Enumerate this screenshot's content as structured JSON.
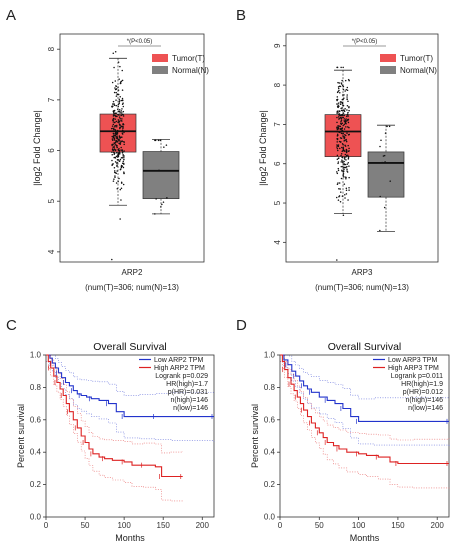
{
  "panels": {
    "A": "A",
    "B": "B",
    "C": "C",
    "D": "D"
  },
  "chart_data": [
    {
      "type": "box",
      "panel": "A",
      "ylabel": "|log2 Fold Change|",
      "ylim": [
        3.8,
        8.3
      ],
      "yticks": [
        4,
        5,
        6,
        7,
        8
      ],
      "xlabel": "ARP2",
      "sublabel": "(num(T)=306; num(N)=13)",
      "significance": "*(P<0.05)",
      "legend": [
        {
          "name": "Tumor(T)",
          "color": "#ee5253"
        },
        {
          "name": "Normal(N)",
          "color": "#808080"
        }
      ],
      "series": [
        {
          "name": "Tumor(T)",
          "color": "#ee5253",
          "q1": 5.97,
          "median": 6.38,
          "q3": 6.72,
          "whisker_low": 4.92,
          "whisker_high": 7.82,
          "n": 306,
          "point_min": 3.85,
          "point_max": 7.95
        },
        {
          "name": "Normal(N)",
          "color": "#808080",
          "q1": 5.05,
          "median": 5.6,
          "q3": 5.98,
          "whisker_low": 4.75,
          "whisker_high": 6.22,
          "n": 13,
          "point_min": 4.75,
          "point_max": 6.2
        }
      ]
    },
    {
      "type": "box",
      "panel": "B",
      "ylabel": "|log2 Fold Change|",
      "ylim": [
        3.5,
        9.3
      ],
      "yticks": [
        4,
        5,
        6,
        7,
        8,
        9
      ],
      "xlabel": "ARP3",
      "sublabel": "(num(T)=306; num(N)=13)",
      "significance": "*(P<0.05)",
      "legend": [
        {
          "name": "Tumor(T)",
          "color": "#ee5253"
        },
        {
          "name": "Normal(N)",
          "color": "#808080"
        }
      ],
      "series": [
        {
          "name": "Tumor(T)",
          "color": "#ee5253",
          "q1": 6.18,
          "median": 6.82,
          "q3": 7.25,
          "whisker_low": 4.73,
          "whisker_high": 8.38,
          "n": 306,
          "point_min": 3.55,
          "point_max": 8.45
        },
        {
          "name": "Normal(N)",
          "color": "#808080",
          "q1": 5.15,
          "median": 6.02,
          "q3": 6.3,
          "whisker_low": 4.28,
          "whisker_high": 6.98,
          "n": 13,
          "point_min": 4.3,
          "point_max": 6.95
        }
      ]
    },
    {
      "type": "line",
      "subtype": "kaplan-meier",
      "panel": "C",
      "title": "Overall Survival",
      "xlabel": "Months",
      "ylabel": "Percent survival",
      "xlim": [
        0,
        215
      ],
      "ylim": [
        0,
        1.0
      ],
      "xticks": [
        0,
        50,
        100,
        150,
        200
      ],
      "yticks": [
        0.0,
        0.2,
        0.4,
        0.6,
        0.8,
        1.0
      ],
      "legend": [
        {
          "name": "Low  ARP2 TPM",
          "color": "#2233cc"
        },
        {
          "name": "High ARP2 TPM",
          "color": "#dd2222"
        }
      ],
      "stats": [
        "Logrank p=0.029",
        "HR(high)=1.7",
        "p(HR)=0.031",
        "n(high)=146",
        "n(low)=146"
      ],
      "series": [
        {
          "name": "Low  ARP2 TPM",
          "color": "#2233cc",
          "x": [
            0,
            5,
            8,
            12,
            16,
            20,
            25,
            30,
            35,
            40,
            45,
            52,
            58,
            68,
            80,
            90,
            100,
            120,
            140,
            160,
            215
          ],
          "y": [
            1.0,
            0.98,
            0.95,
            0.92,
            0.89,
            0.86,
            0.83,
            0.81,
            0.78,
            0.76,
            0.75,
            0.74,
            0.73,
            0.72,
            0.7,
            0.65,
            0.62,
            0.62,
            0.62,
            0.62,
            0.62
          ]
        },
        {
          "name": "High ARP2 TPM",
          "color": "#dd2222",
          "x": [
            0,
            3,
            6,
            10,
            14,
            18,
            22,
            26,
            30,
            35,
            40,
            45,
            50,
            55,
            60,
            68,
            75,
            85,
            100,
            110,
            125,
            140,
            148,
            160,
            175
          ],
          "y": [
            1.0,
            0.96,
            0.92,
            0.87,
            0.83,
            0.79,
            0.75,
            0.7,
            0.65,
            0.6,
            0.55,
            0.5,
            0.46,
            0.42,
            0.39,
            0.37,
            0.36,
            0.35,
            0.34,
            0.32,
            0.32,
            0.31,
            0.25,
            0.25,
            0.25
          ]
        }
      ]
    },
    {
      "type": "line",
      "subtype": "kaplan-meier",
      "panel": "D",
      "title": "Overall Survival",
      "xlabel": "Months",
      "ylabel": "Percent survival",
      "xlim": [
        0,
        215
      ],
      "ylim": [
        0,
        1.0
      ],
      "xticks": [
        0,
        50,
        100,
        150,
        200
      ],
      "yticks": [
        0.0,
        0.2,
        0.4,
        0.6,
        0.8,
        1.0
      ],
      "legend": [
        {
          "name": "Low  ARP3 TPM",
          "color": "#2233cc"
        },
        {
          "name": "High ARP3 TPM",
          "color": "#dd2222"
        }
      ],
      "stats": [
        "Logrank p=0.011",
        "HR(high)=1.9",
        "p(HR)=0.012",
        "n(high)=146",
        "n(low)=146"
      ],
      "series": [
        {
          "name": "Low  ARP3 TPM",
          "color": "#2233cc",
          "x": [
            0,
            5,
            10,
            15,
            20,
            25,
            30,
            35,
            40,
            50,
            60,
            70,
            80,
            90,
            100,
            120,
            215
          ],
          "y": [
            1.0,
            0.97,
            0.94,
            0.9,
            0.87,
            0.84,
            0.81,
            0.79,
            0.77,
            0.74,
            0.72,
            0.7,
            0.67,
            0.62,
            0.59,
            0.59,
            0.59
          ]
        },
        {
          "name": "High ARP3 TPM",
          "color": "#dd2222",
          "x": [
            0,
            3,
            6,
            10,
            14,
            18,
            22,
            26,
            30,
            35,
            40,
            45,
            50,
            55,
            60,
            68,
            75,
            85,
            100,
            110,
            125,
            140,
            150,
            170,
            215
          ],
          "y": [
            1.0,
            0.96,
            0.91,
            0.86,
            0.82,
            0.78,
            0.74,
            0.7,
            0.66,
            0.62,
            0.58,
            0.55,
            0.52,
            0.49,
            0.46,
            0.44,
            0.42,
            0.4,
            0.39,
            0.38,
            0.37,
            0.34,
            0.33,
            0.33,
            0.33
          ]
        }
      ]
    }
  ]
}
